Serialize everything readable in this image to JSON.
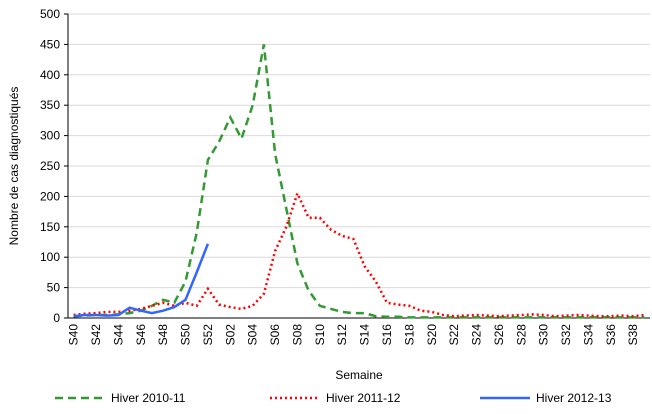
{
  "chart_data": {
    "type": "line",
    "x_label": "Semaine",
    "y_label": "Nombre de cas diagnostiqués",
    "categories": [
      "S40",
      null,
      "S42",
      null,
      "S44",
      null,
      "S46",
      null,
      "S48",
      null,
      "S50",
      null,
      "S52",
      null,
      "S02",
      null,
      "S04",
      null,
      "S06",
      null,
      "S08",
      null,
      "S10",
      null,
      "S12",
      null,
      "S14",
      null,
      "S16",
      null,
      "S18",
      null,
      "S20",
      null,
      "S22",
      null,
      "S24",
      null,
      "S26",
      null,
      "S28",
      null,
      "S30",
      null,
      "S32",
      null,
      "S34",
      null,
      "S36",
      null,
      "S38",
      null
    ],
    "series": [
      {
        "name": "Hiver 2010-11",
        "color": "#339933",
        "dash": "8,5",
        "values": [
          3,
          4,
          5,
          5,
          6,
          8,
          12,
          20,
          30,
          25,
          60,
          140,
          260,
          290,
          330,
          295,
          350,
          450,
          270,
          180,
          90,
          45,
          20,
          15,
          10,
          8,
          8,
          3,
          2,
          2,
          1,
          1,
          1,
          1,
          1,
          1,
          1,
          1,
          1,
          1,
          1,
          1,
          1,
          1,
          1,
          1,
          1,
          1,
          1,
          1,
          1,
          1
        ]
      },
      {
        "name": "Hiver 2011-12",
        "color": "#ff0000",
        "dash": "2,3",
        "values": [
          5,
          7,
          8,
          10,
          10,
          12,
          15,
          20,
          25,
          20,
          25,
          20,
          48,
          22,
          18,
          15,
          20,
          40,
          110,
          150,
          205,
          165,
          165,
          145,
          135,
          130,
          85,
          60,
          25,
          22,
          20,
          12,
          10,
          5,
          3,
          4,
          5,
          4,
          3,
          4,
          5,
          6,
          5,
          3,
          4,
          5,
          4,
          3,
          3,
          4,
          3,
          5
        ]
      },
      {
        "name": "Hiver 2012-13",
        "color": "#3366ff",
        "dash": "none",
        "values": [
          3,
          5,
          5,
          4,
          5,
          17,
          12,
          8,
          12,
          18,
          30,
          75,
          122,
          null,
          null,
          null,
          null,
          null,
          null,
          null,
          null,
          null,
          null,
          null,
          null,
          null,
          null,
          null,
          null,
          null,
          null,
          null,
          null,
          null,
          null,
          null,
          null,
          null,
          null,
          null,
          null,
          null,
          null,
          null,
          null,
          null,
          null,
          null,
          null,
          null,
          null,
          null
        ]
      }
    ],
    "ylim": [
      0,
      500
    ],
    "yticks": [
      0,
      50,
      100,
      150,
      200,
      250,
      300,
      350,
      400,
      450,
      500
    ],
    "grid": true
  }
}
